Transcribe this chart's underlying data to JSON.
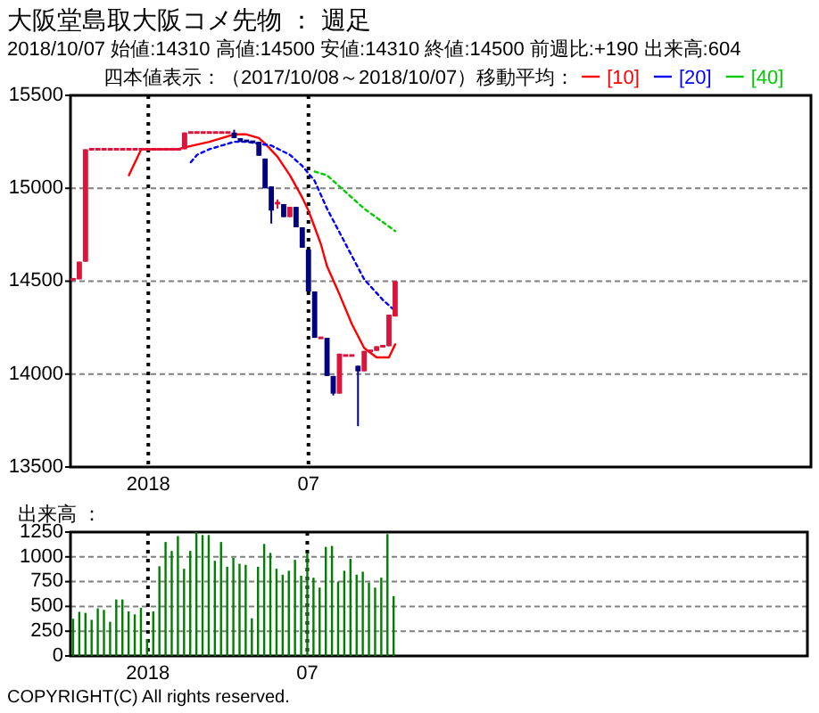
{
  "chart_data": [
    {
      "type": "candlestick",
      "title": "大阪堂島取大阪コメ先物 ：  週足",
      "subtitle": "2018/10/07 始値:14310 高値:14500 安値:14310 終値:14500 前週比:+190 出来高:604",
      "annotations": [
        "四本値表示：（2017/10/08～2018/10/07）移動平均："
      ],
      "x": [
        "2017-10-08",
        "2017-10-15",
        "2017-10-22",
        "2017-10-29",
        "2017-11-05",
        "2017-11-12",
        "2017-11-19",
        "2017-11-26",
        "2017-12-03",
        "2017-12-10",
        "2017-12-17",
        "2017-12-24",
        "2017-12-31",
        "2018-01-07",
        "2018-01-14",
        "2018-01-21",
        "2018-01-28",
        "2018-02-04",
        "2018-02-11",
        "2018-02-18",
        "2018-02-25",
        "2018-03-04",
        "2018-03-11",
        "2018-03-18",
        "2018-03-25",
        "2018-04-01",
        "2018-04-08",
        "2018-04-15",
        "2018-04-22",
        "2018-04-29",
        "2018-05-06",
        "2018-05-13",
        "2018-05-20",
        "2018-05-27",
        "2018-06-03",
        "2018-06-10",
        "2018-06-17",
        "2018-06-24",
        "2018-07-01",
        "2018-07-08",
        "2018-07-15",
        "2018-07-22",
        "2018-07-29",
        "2018-08-05",
        "2018-08-12",
        "2018-08-19",
        "2018-08-26",
        "2018-09-02",
        "2018-09-09",
        "2018-09-16",
        "2018-09-23",
        "2018-09-30",
        "2018-10-07"
      ],
      "ohlc": [
        [
          14510,
          14510,
          14510,
          14510
        ],
        [
          14510,
          14605,
          14510,
          14605
        ],
        [
          14605,
          15210,
          14605,
          15210
        ],
        [
          15210,
          15210,
          15210,
          15210
        ],
        [
          15210,
          15210,
          15210,
          15210
        ],
        [
          15210,
          15210,
          15210,
          15210
        ],
        [
          15210,
          15210,
          15210,
          15210
        ],
        [
          15210,
          15210,
          15210,
          15210
        ],
        [
          15210,
          15210,
          15210,
          15210
        ],
        [
          15210,
          15210,
          15210,
          15210
        ],
        [
          15210,
          15210,
          15210,
          15210
        ],
        [
          15210,
          15210,
          15210,
          15210
        ],
        [
          15210,
          15210,
          15210,
          15210
        ],
        [
          15210,
          15210,
          15210,
          15210
        ],
        [
          15210,
          15210,
          15210,
          15210
        ],
        [
          15210,
          15210,
          15210,
          15210
        ],
        [
          15210,
          15210,
          15210,
          15210
        ],
        [
          15210,
          15210,
          15210,
          15210
        ],
        [
          15210,
          15300,
          15210,
          15300
        ],
        [
          15300,
          15300,
          15300,
          15300
        ],
        [
          15300,
          15300,
          15300,
          15300
        ],
        [
          15300,
          15300,
          15300,
          15300
        ],
        [
          15300,
          15300,
          15300,
          15300
        ],
        [
          15300,
          15300,
          15300,
          15300
        ],
        [
          15300,
          15300,
          15300,
          15300
        ],
        [
          15300,
          15300,
          15300,
          15300
        ],
        [
          15300,
          15315,
          15270,
          15270
        ],
        [
          15270,
          15270,
          15250,
          15250
        ],
        [
          15255,
          15255,
          15250,
          15250
        ],
        [
          15250,
          15250,
          15250,
          15250
        ],
        [
          15250,
          15250,
          15175,
          15175
        ],
        [
          15160,
          15160,
          15000,
          15000
        ],
        [
          15010,
          15010,
          14810,
          14880
        ],
        [
          14910,
          14940,
          14890,
          14920
        ],
        [
          14915,
          14915,
          14845,
          14845
        ],
        [
          14845,
          14900,
          14845,
          14900
        ],
        [
          14900,
          14900,
          14790,
          14790
        ],
        [
          14790,
          14790,
          14680,
          14680
        ],
        [
          14670,
          14670,
          14445,
          14445
        ],
        [
          14445,
          14445,
          14195,
          14195
        ],
        [
          14195,
          14195,
          14195,
          14195
        ],
        [
          14195,
          14195,
          13990,
          13990
        ],
        [
          13990,
          13990,
          13885,
          13895
        ],
        [
          13895,
          14110,
          13895,
          14110
        ],
        [
          14100,
          14100,
          14100,
          14100
        ],
        [
          14100,
          14100,
          14100,
          14100
        ],
        [
          14045,
          14045,
          13720,
          14015
        ],
        [
          14015,
          14125,
          14015,
          14125
        ],
        [
          14125,
          14125,
          14125,
          14125
        ],
        [
          14125,
          14150,
          14125,
          14150
        ],
        [
          14150,
          14150,
          14150,
          14150
        ],
        [
          14150,
          14320,
          14150,
          14320
        ],
        [
          14310,
          14500,
          14310,
          14500
        ]
      ],
      "colors": [
        "#dc143c",
        "#dc143c",
        "#dc143c",
        "#dc143c",
        "#dc143c",
        "#dc143c",
        "#dc143c",
        "#dc143c",
        "#dc143c",
        "#dc143c",
        "#dc143c",
        "#dc143c",
        "#dc143c",
        "#dc143c",
        "#dc143c",
        "#dc143c",
        "#dc143c",
        "#dc143c",
        "#dc143c",
        "#dc143c",
        "#dc143c",
        "#dc143c",
        "#dc143c",
        "#dc143c",
        "#dc143c",
        "#dc143c",
        "#000080",
        "#000080",
        "#000080",
        "#000080",
        "#000080",
        "#000080",
        "#000080",
        "#dc143c",
        "#000080",
        "#dc143c",
        "#000080",
        "#000080",
        "#000080",
        "#000080",
        "#dc143c",
        "#000080",
        "#000080",
        "#dc143c",
        "#dc143c",
        "#dc143c",
        "#000080",
        "#dc143c",
        "#dc143c",
        "#dc143c",
        "#dc143c",
        "#dc143c",
        "#dc143c"
      ],
      "series": [
        {
          "type": "line",
          "name": "[10]",
          "color": "#ff0000",
          "line_style": "solid",
          "x": [
            "2017-12-10",
            "2017-12-24",
            "2017-12-31",
            "2018-02-04",
            "2018-02-11",
            "2018-03-11",
            "2018-04-08",
            "2018-04-22",
            "2018-05-06",
            "2018-05-13",
            "2018-05-27",
            "2018-06-10",
            "2018-06-17",
            "2018-06-24",
            "2018-07-01",
            "2018-07-08",
            "2018-07-15",
            "2018-07-22",
            "2018-08-05",
            "2018-08-19",
            "2018-09-02",
            "2018-09-16",
            "2018-09-30",
            "2018-10-07"
          ],
          "values": [
            15070,
            15210,
            15210,
            15210,
            15220,
            15250,
            15290,
            15290,
            15270,
            15240,
            15170,
            15070,
            15010,
            14950,
            14880,
            14790,
            14700,
            14580,
            14430,
            14270,
            14140,
            14090,
            14090,
            14160
          ]
        },
        {
          "type": "line",
          "name": "[20]",
          "color": "#0000ff",
          "line_style": "dotted",
          "x": [
            "2018-02-18",
            "2018-02-25",
            "2018-03-11",
            "2018-04-08",
            "2018-04-22",
            "2018-05-20",
            "2018-06-10",
            "2018-06-24",
            "2018-07-08",
            "2018-07-22",
            "2018-08-12",
            "2018-09-02",
            "2018-09-23",
            "2018-10-07"
          ],
          "values": [
            15140,
            15180,
            15210,
            15250,
            15250,
            15230,
            15180,
            15120,
            15040,
            14890,
            14700,
            14510,
            14400,
            14340
          ]
        },
        {
          "type": "line",
          "name": "[40]",
          "color": "#00cc00",
          "line_style": "dotted",
          "x": [
            "2018-07-08",
            "2018-07-22",
            "2018-08-05",
            "2018-09-02",
            "2018-10-07"
          ],
          "values": [
            15090,
            15070,
            15010,
            14890,
            14770
          ]
        }
      ],
      "xlim": [
        "2017-10-05",
        "2020-01-20"
      ],
      "xticks": [
        {
          "value": "2018-01-01",
          "label": "2018"
        },
        {
          "value": "2018-07-01",
          "label": "07"
        }
      ],
      "ylim": [
        13500,
        15500
      ],
      "yticks": [
        13500,
        14000,
        14500,
        15000,
        15500
      ],
      "grid": true,
      "legend": "top"
    },
    {
      "type": "bar",
      "title": "出来高  ：",
      "annotations": [
        "COPYRIGHT(C) All rights reserved."
      ],
      "x": [
        "2017-10-08",
        "2017-10-15",
        "2017-10-22",
        "2017-10-29",
        "2017-11-05",
        "2017-11-12",
        "2017-11-19",
        "2017-11-26",
        "2017-12-03",
        "2017-12-10",
        "2017-12-17",
        "2017-12-24",
        "2017-12-31",
        "2018-01-07",
        "2018-01-14",
        "2018-01-21",
        "2018-01-28",
        "2018-02-04",
        "2018-02-11",
        "2018-02-18",
        "2018-02-25",
        "2018-03-04",
        "2018-03-11",
        "2018-03-18",
        "2018-03-25",
        "2018-04-01",
        "2018-04-08",
        "2018-04-15",
        "2018-04-22",
        "2018-04-29",
        "2018-05-06",
        "2018-05-13",
        "2018-05-20",
        "2018-05-27",
        "2018-06-03",
        "2018-06-10",
        "2018-06-17",
        "2018-06-24",
        "2018-07-01",
        "2018-07-08",
        "2018-07-15",
        "2018-07-22",
        "2018-07-29",
        "2018-08-05",
        "2018-08-12",
        "2018-08-19",
        "2018-08-26",
        "2018-09-02",
        "2018-09-09",
        "2018-09-16",
        "2018-09-23",
        "2018-09-30",
        "2018-10-07"
      ],
      "values": [
        375,
        445,
        435,
        365,
        480,
        465,
        345,
        570,
        570,
        450,
        420,
        485,
        170,
        450,
        905,
        1150,
        1060,
        1210,
        880,
        1060,
        1250,
        1220,
        1220,
        960,
        1150,
        900,
        990,
        930,
        920,
        380,
        900,
        1130,
        1040,
        880,
        820,
        860,
        970,
        810,
        1040,
        790,
        690,
        1100,
        1110,
        750,
        860,
        980,
        820,
        850,
        740,
        690,
        790,
        1230,
        604
      ],
      "color": "#008000",
      "xlim": [
        "2017-10-05",
        "2020-01-20"
      ],
      "xticks": [
        {
          "value": "2018-01-01",
          "label": "2018"
        },
        {
          "value": "2018-07-01",
          "label": "07"
        }
      ],
      "ylim": [
        0,
        1250
      ],
      "yticks": [
        0,
        250,
        500,
        750,
        1000,
        1250
      ],
      "grid": true
    }
  ]
}
